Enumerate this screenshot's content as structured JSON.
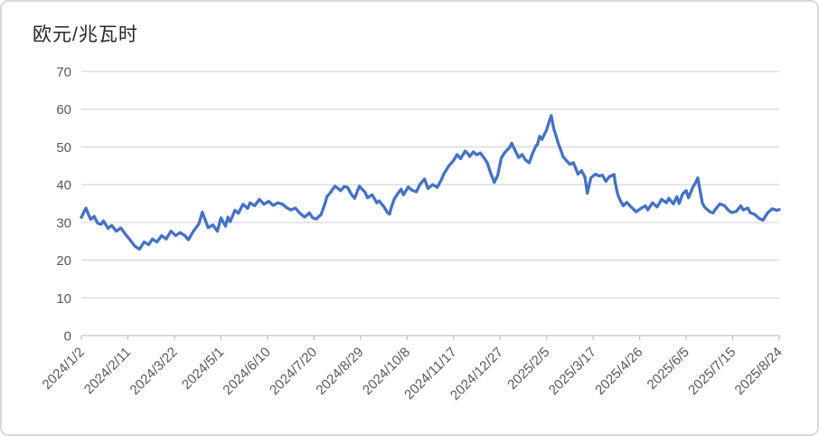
{
  "window": {
    "background": "#ffffff",
    "border_color": "#d9d9d9"
  },
  "chart_data": {
    "type": "line",
    "title": "欧元/兆瓦时",
    "xlabel": "",
    "ylabel": "",
    "ylim": [
      0,
      70
    ],
    "y_tick_step": 10,
    "xlim_days": [
      0,
      600
    ],
    "x_tick_interval_days": 40,
    "x_tick_labels": [
      "2024/1/2",
      "2024/2/11",
      "2024/3/22",
      "2024/5/1",
      "2024/6/10",
      "2024/7/20",
      "2024/8/29",
      "2024/10/8",
      "2024/11/17",
      "2024/12/27",
      "2025/2/5",
      "2025/3/17",
      "2025/4/26",
      "2025/6/5",
      "2025/7/15",
      "2025/8/24"
    ],
    "grid": true,
    "legend": false,
    "colors": {
      "line": "#4472C4",
      "grid": "#d9d9d9",
      "axis": "#c3c3c3",
      "tick_label": "#595959",
      "title": "#262626"
    },
    "series": [
      {
        "name": "欧元/兆瓦时",
        "color": "#4472C4",
        "points": [
          [
            0,
            31.3
          ],
          [
            2,
            32.6
          ],
          [
            4,
            33.8
          ],
          [
            6,
            32.2
          ],
          [
            8,
            30.8
          ],
          [
            11,
            31.6
          ],
          [
            14,
            29.8
          ],
          [
            17,
            29.5
          ],
          [
            19,
            30.4
          ],
          [
            23,
            28.4
          ],
          [
            26,
            29.2
          ],
          [
            30,
            27.7
          ],
          [
            34,
            28.5
          ],
          [
            38,
            26.8
          ],
          [
            40,
            26.1
          ],
          [
            44,
            24.5
          ],
          [
            46,
            23.7
          ],
          [
            50,
            22.9
          ],
          [
            54,
            24.8
          ],
          [
            58,
            24.1
          ],
          [
            61,
            25.6
          ],
          [
            65,
            24.8
          ],
          [
            69,
            26.5
          ],
          [
            73,
            25.6
          ],
          [
            77,
            27.7
          ],
          [
            81,
            26.5
          ],
          [
            85,
            27.3
          ],
          [
            89,
            26.5
          ],
          [
            92,
            25.4
          ],
          [
            96,
            27.5
          ],
          [
            101,
            29.6
          ],
          [
            104,
            32.7
          ],
          [
            109,
            28.6
          ],
          [
            113,
            29.3
          ],
          [
            117,
            27.7
          ],
          [
            120,
            31.2
          ],
          [
            124,
            29.0
          ],
          [
            126,
            31.4
          ],
          [
            128,
            30.2
          ],
          [
            132,
            33.2
          ],
          [
            135,
            32.4
          ],
          [
            139,
            34.8
          ],
          [
            143,
            33.7
          ],
          [
            145,
            35.2
          ],
          [
            149,
            34.4
          ],
          [
            153,
            36.1
          ],
          [
            157,
            34.8
          ],
          [
            161,
            35.6
          ],
          [
            165,
            34.5
          ],
          [
            169,
            35.2
          ],
          [
            173,
            34.8
          ],
          [
            176,
            34.0
          ],
          [
            180,
            33.3
          ],
          [
            184,
            33.8
          ],
          [
            188,
            32.4
          ],
          [
            192,
            31.4
          ],
          [
            196,
            32.5
          ],
          [
            199,
            31.2
          ],
          [
            202,
            30.9
          ],
          [
            205,
            31.8
          ],
          [
            206,
            32.0
          ],
          [
            210,
            35.5
          ],
          [
            211,
            36.8
          ],
          [
            214,
            37.8
          ],
          [
            215,
            38.3
          ],
          [
            218,
            39.6
          ],
          [
            221,
            38.9
          ],
          [
            223,
            38.4
          ],
          [
            226,
            39.5
          ],
          [
            229,
            39.3
          ],
          [
            232,
            37.5
          ],
          [
            235,
            36.4
          ],
          [
            236,
            37.2
          ],
          [
            239,
            39.6
          ],
          [
            242,
            38.6
          ],
          [
            244,
            38.0
          ],
          [
            246,
            36.5
          ],
          [
            250,
            37.3
          ],
          [
            253,
            35.8
          ],
          [
            254,
            35.2
          ],
          [
            256,
            35.7
          ],
          [
            260,
            34.2
          ],
          [
            263,
            32.7
          ],
          [
            265,
            32.2
          ],
          [
            266,
            33.5
          ],
          [
            269,
            36.2
          ],
          [
            272,
            37.6
          ],
          [
            275,
            38.8
          ],
          [
            277,
            37.3
          ],
          [
            281,
            39.4
          ],
          [
            284,
            38.6
          ],
          [
            288,
            38.1
          ],
          [
            291,
            40.0
          ],
          [
            295,
            41.5
          ],
          [
            298,
            39.0
          ],
          [
            302,
            40.0
          ],
          [
            306,
            39.3
          ],
          [
            309,
            41.0
          ],
          [
            312,
            43.0
          ],
          [
            316,
            45.0
          ],
          [
            320,
            46.4
          ],
          [
            323,
            48.0
          ],
          [
            326,
            46.9
          ],
          [
            330,
            48.9
          ],
          [
            332,
            48.3
          ],
          [
            334,
            47.5
          ],
          [
            337,
            48.7
          ],
          [
            340,
            47.9
          ],
          [
            343,
            48.4
          ],
          [
            346,
            47.2
          ],
          [
            349,
            45.8
          ],
          [
            352,
            43.0
          ],
          [
            355,
            40.6
          ],
          [
            358,
            42.5
          ],
          [
            361,
            47.0
          ],
          [
            364,
            48.5
          ],
          [
            368,
            49.8
          ],
          [
            370,
            51.0
          ],
          [
            373,
            49.0
          ],
          [
            376,
            47.2
          ],
          [
            379,
            48.0
          ],
          [
            382,
            46.5
          ],
          [
            385,
            45.8
          ],
          [
            388,
            48.3
          ],
          [
            391,
            50.4
          ],
          [
            392,
            50.5
          ],
          [
            394,
            52.8
          ],
          [
            396,
            52.0
          ],
          [
            398,
            53.3
          ],
          [
            400,
            54.5
          ],
          [
            402,
            56.5
          ],
          [
            404,
            58.3
          ],
          [
            406,
            55.0
          ],
          [
            408,
            53.0
          ],
          [
            410,
            51.0
          ],
          [
            413,
            48.5
          ],
          [
            414,
            47.5
          ],
          [
            417,
            46.4
          ],
          [
            420,
            45.4
          ],
          [
            423,
            45.8
          ],
          [
            425,
            44.4
          ],
          [
            427,
            42.8
          ],
          [
            430,
            43.7
          ],
          [
            433,
            42.0
          ],
          [
            435,
            37.7
          ],
          [
            438,
            41.8
          ],
          [
            442,
            42.8
          ],
          [
            445,
            42.3
          ],
          [
            448,
            42.5
          ],
          [
            451,
            40.9
          ],
          [
            454,
            42.1
          ],
          [
            458,
            42.7
          ],
          [
            459,
            40.5
          ],
          [
            461,
            37.6
          ],
          [
            463,
            36.0
          ],
          [
            466,
            34.4
          ],
          [
            469,
            35.3
          ],
          [
            473,
            34.0
          ],
          [
            477,
            32.8
          ],
          [
            481,
            33.7
          ],
          [
            485,
            34.4
          ],
          [
            487,
            33.3
          ],
          [
            491,
            35.2
          ],
          [
            495,
            34.1
          ],
          [
            499,
            36.1
          ],
          [
            503,
            35.2
          ],
          [
            505,
            36.4
          ],
          [
            509,
            34.9
          ],
          [
            512,
            36.8
          ],
          [
            514,
            35.0
          ],
          [
            517,
            37.6
          ],
          [
            520,
            38.4
          ],
          [
            522,
            36.5
          ],
          [
            526,
            39.5
          ],
          [
            528,
            40.5
          ],
          [
            530,
            41.8
          ],
          [
            534,
            35.0
          ],
          [
            536,
            34.0
          ],
          [
            540,
            32.9
          ],
          [
            543,
            32.5
          ],
          [
            546,
            33.8
          ],
          [
            549,
            34.9
          ],
          [
            553,
            34.4
          ],
          [
            556,
            33.3
          ],
          [
            559,
            32.6
          ],
          [
            563,
            32.9
          ],
          [
            567,
            34.4
          ],
          [
            569,
            33.3
          ],
          [
            573,
            33.8
          ],
          [
            575,
            32.6
          ],
          [
            579,
            32.1
          ],
          [
            583,
            31.0
          ],
          [
            586,
            30.6
          ],
          [
            590,
            32.5
          ],
          [
            594,
            33.6
          ],
          [
            598,
            33.2
          ],
          [
            600,
            33.4
          ]
        ]
      }
    ]
  }
}
